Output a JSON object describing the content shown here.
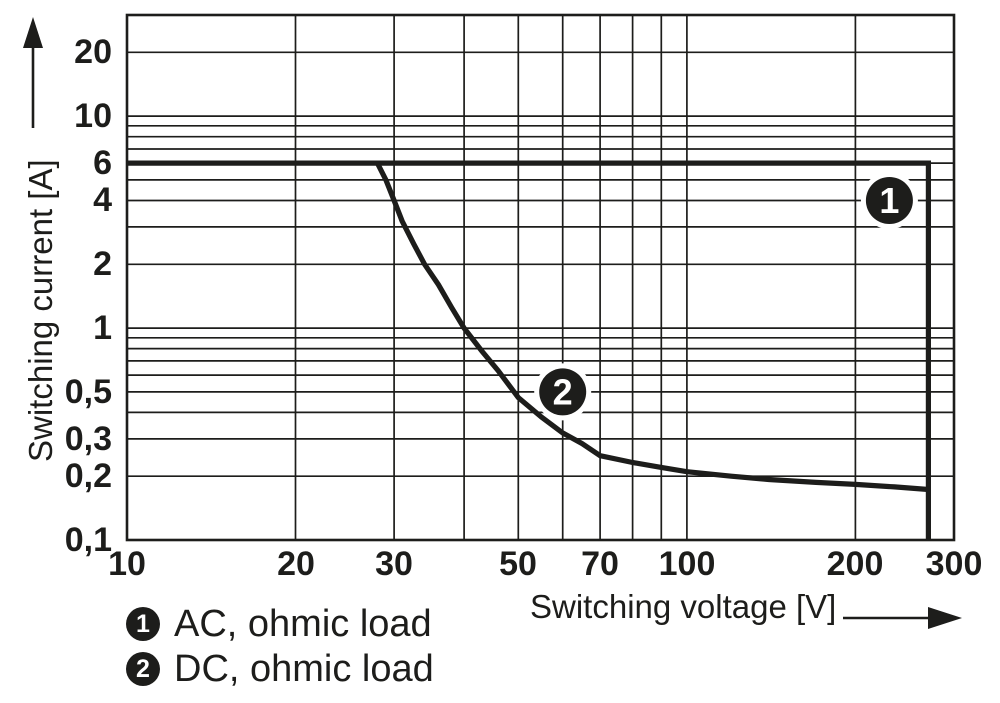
{
  "figure": {
    "background": "#ffffff",
    "ink_color": "#1d1d1b"
  },
  "chart_data": {
    "type": "line",
    "title": "",
    "xlabel": "Switching voltage [V]",
    "ylabel": "Switching current [A]",
    "xscale": "log",
    "yscale": "log",
    "xlim": [
      10,
      300
    ],
    "ylim": [
      0.1,
      30
    ],
    "grid": true,
    "x_gridlines": [
      20,
      30,
      40,
      50,
      60,
      70,
      80,
      90,
      100,
      200
    ],
    "y_gridlines": [
      0.2,
      0.3,
      0.4,
      0.5,
      0.6,
      0.7,
      0.8,
      0.9,
      1,
      2,
      3,
      4,
      5,
      6,
      7,
      8,
      9,
      10,
      20
    ],
    "xticks": [
      {
        "value": 10,
        "label": "10"
      },
      {
        "value": 20,
        "label": "20"
      },
      {
        "value": 30,
        "label": "30"
      },
      {
        "value": 50,
        "label": "50"
      },
      {
        "value": 70,
        "label": "70"
      },
      {
        "value": 100,
        "label": "100"
      },
      {
        "value": 200,
        "label": "200"
      },
      {
        "value": 300,
        "label": "300"
      }
    ],
    "yticks": [
      {
        "value": 20,
        "label": "20"
      },
      {
        "value": 10,
        "label": "10"
      },
      {
        "value": 6,
        "label": "6"
      },
      {
        "value": 4,
        "label": "4"
      },
      {
        "value": 2,
        "label": "2"
      },
      {
        "value": 1,
        "label": "1"
      },
      {
        "value": 0.5,
        "label": "0,5"
      },
      {
        "value": 0.3,
        "label": "0,3"
      },
      {
        "value": 0.2,
        "label": "0,2"
      },
      {
        "value": 0.1,
        "label": "0,1"
      }
    ],
    "series": [
      {
        "badge": "1",
        "name": "AC, ohmic load",
        "color": "#1d1d1b",
        "badge_position": {
          "x": 230,
          "y": 4
        },
        "points": [
          [
            10,
            6
          ],
          [
            270,
            6
          ],
          [
            270,
            0.1
          ]
        ]
      },
      {
        "badge": "2",
        "name": "DC, ohmic load",
        "color": "#1d1d1b",
        "badge_position": {
          "x": 60,
          "y": 0.5
        },
        "points": [
          [
            28,
            6
          ],
          [
            29,
            5
          ],
          [
            30,
            4
          ],
          [
            31,
            3.2
          ],
          [
            32.5,
            2.5
          ],
          [
            34,
            2.0
          ],
          [
            36,
            1.6
          ],
          [
            38,
            1.25
          ],
          [
            40,
            1.0
          ],
          [
            43,
            0.78
          ],
          [
            46,
            0.63
          ],
          [
            50,
            0.47
          ],
          [
            55,
            0.38
          ],
          [
            60,
            0.32
          ],
          [
            65,
            0.285
          ],
          [
            70,
            0.25
          ],
          [
            80,
            0.232
          ],
          [
            90,
            0.22
          ],
          [
            100,
            0.21
          ],
          [
            120,
            0.2
          ],
          [
            140,
            0.193
          ],
          [
            170,
            0.187
          ],
          [
            200,
            0.183
          ],
          [
            235,
            0.178
          ],
          [
            270,
            0.173
          ]
        ]
      }
    ],
    "legend": {
      "position": "bottom-left",
      "items": [
        {
          "badge": "1",
          "label": "AC, ohmic load"
        },
        {
          "badge": "2",
          "label": "DC, ohmic load"
        }
      ]
    }
  }
}
